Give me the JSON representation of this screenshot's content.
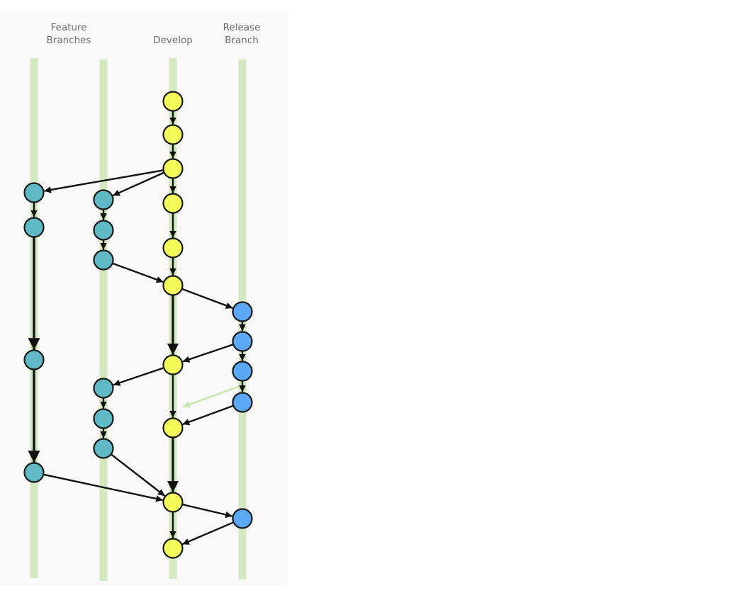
{
  "labels": {
    "feature": "Feature\nBranches",
    "develop": "Develop",
    "release": "Release\nBranch"
  },
  "colors": {
    "lane": "#d4e9bf",
    "feature_commit": "#5fbac6",
    "develop_commit": "#f2fb58",
    "release_commit": "#5aa8f6",
    "arrow": "#111111",
    "faded_arrow": "#c9e6af",
    "background": "#f9f9f9"
  },
  "lanes": [
    "feature-a",
    "feature-b",
    "develop",
    "release"
  ]
}
